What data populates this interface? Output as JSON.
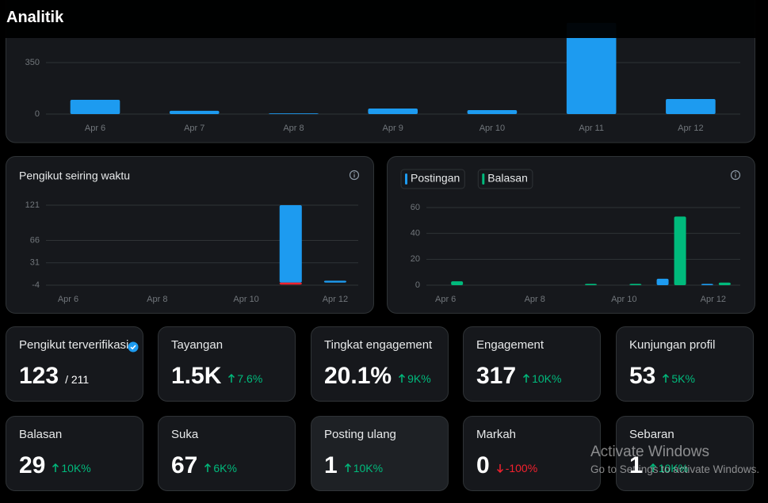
{
  "header": {
    "title": "Analitik"
  },
  "chart_data": [
    {
      "type": "bar",
      "categories": [
        "Apr 6",
        "Apr 7",
        "Apr 8",
        "Apr 9",
        "Apr 10",
        "Apr 11",
        "Apr 12"
      ],
      "series": [
        {
          "color": "#1d9bf0",
          "values": [
            97,
            22,
            5,
            38,
            27,
            620,
            102
          ]
        }
      ],
      "ylim": [
        0,
        700
      ],
      "yticks": [
        0,
        350
      ],
      "grid": true
    },
    {
      "type": "bar",
      "title": "Pengikut seiring waktu",
      "stacked": true,
      "categories": [
        "Apr 6",
        null,
        "Apr 8",
        null,
        "Apr 10",
        null,
        "Apr 12"
      ],
      "series": [
        {
          "color": "#1d9bf0",
          "values": [
            0,
            0,
            0,
            0,
            0,
            121,
            3
          ]
        },
        {
          "color": "#f4212e",
          "values": [
            0,
            0,
            0,
            0,
            0,
            -3,
            0
          ]
        }
      ],
      "ylim": [
        -4,
        121
      ],
      "yticks": [
        -4,
        31,
        66,
        121
      ],
      "grid": true
    },
    {
      "type": "bar",
      "legend": "top-left",
      "categories": [
        "Apr 6",
        null,
        "Apr 8",
        null,
        "Apr 10",
        null,
        "Apr 12"
      ],
      "series": [
        {
          "name": "Postingan",
          "color": "#1d9bf0",
          "values": [
            0,
            0,
            0,
            0,
            0,
            5,
            1
          ]
        },
        {
          "name": "Balasan",
          "color": "#00ba7c",
          "values": [
            3,
            0,
            0,
            1,
            1,
            53,
            2
          ]
        }
      ],
      "ylim": [
        0,
        60
      ],
      "yticks": [
        0,
        20,
        40,
        60
      ],
      "grid": true
    }
  ],
  "cards": [
    {
      "title": "Pengikut terverifikasi",
      "value": "123",
      "total": "/ 211"
    },
    {
      "title": "Tayangan",
      "value": "1.5K",
      "change": "7.6%",
      "direction": "up"
    },
    {
      "title": "Tingkat engagement",
      "value": "20.1%",
      "change": "9K%",
      "direction": "up"
    },
    {
      "title": "Engagement",
      "value": "317",
      "change": "10K%",
      "direction": "up"
    },
    {
      "title": "Kunjungan profil",
      "value": "53",
      "change": "5K%",
      "direction": "up"
    },
    {
      "title": "Balasan",
      "value": "29",
      "change": "10K%",
      "direction": "up"
    },
    {
      "title": "Suka",
      "value": "67",
      "change": "6K%",
      "direction": "up"
    },
    {
      "title": "Posting ulang",
      "value": "1",
      "change": "10K%",
      "direction": "up"
    },
    {
      "title": "Markah",
      "value": "0",
      "change": "-100%",
      "direction": "down"
    },
    {
      "title": "Sebaran",
      "value": "1",
      "change": "10K%",
      "direction": "up"
    }
  ],
  "watermark": {
    "title": "Activate Windows",
    "subtitle": "Go to Settings to activate Windows."
  }
}
